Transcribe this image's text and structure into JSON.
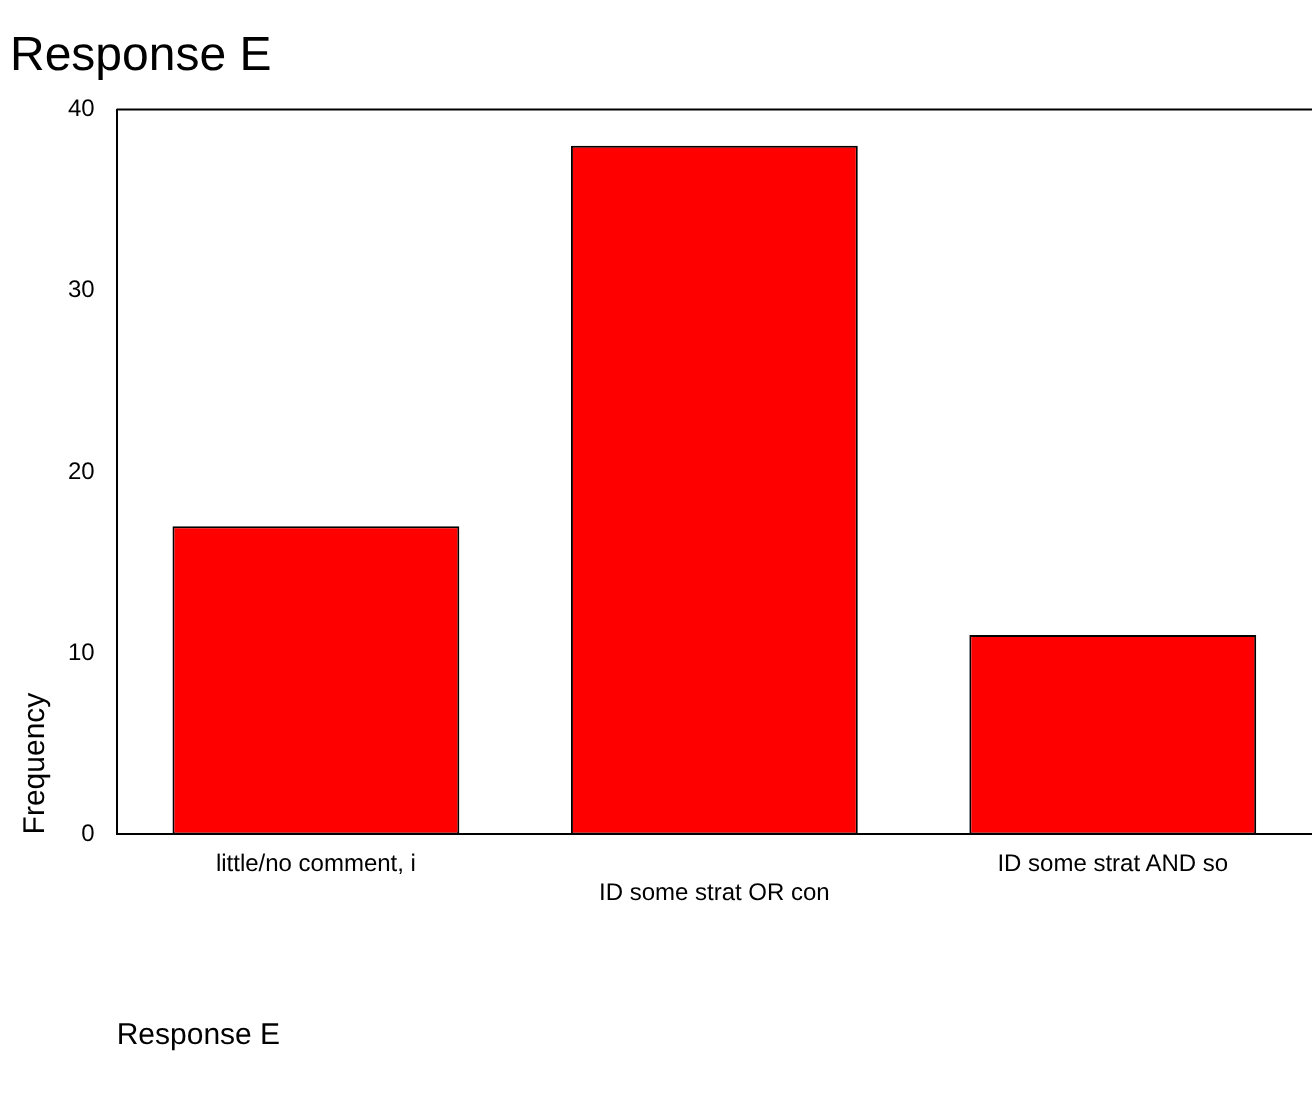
{
  "chart_data": {
    "type": "bar",
    "title": "Response E",
    "xlabel": "Response E",
    "ylabel": "Frequency",
    "categories": [
      "little/no comment, i",
      "ID some strat OR con",
      "ID some strat AND so"
    ],
    "values": [
      17,
      38,
      11
    ],
    "color": "#ff0000",
    "ylim": [
      0,
      40
    ],
    "yticks": [
      0,
      10,
      20,
      30,
      40
    ],
    "grid": false,
    "legend": false
  }
}
